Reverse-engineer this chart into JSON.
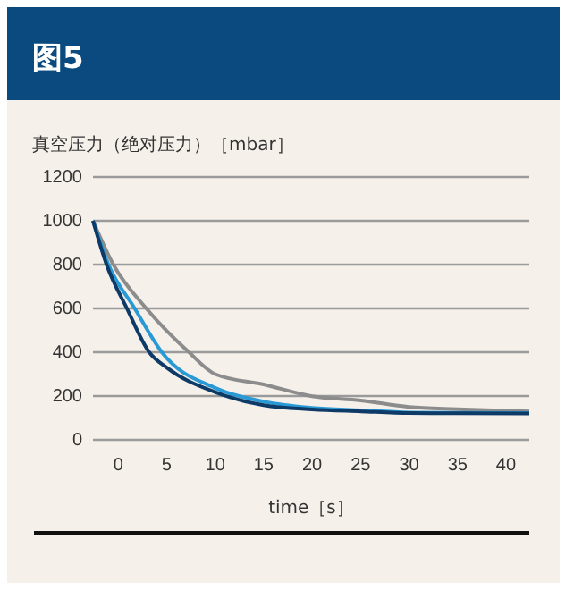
{
  "chart_data": {
    "type": "line",
    "title": "图5",
    "ylabel": "真空压力（绝对压力）［mbar］",
    "xlabel": "time［s］",
    "xlim": [
      -2.6,
      42.4
    ],
    "xticks": [
      0,
      5,
      10,
      15,
      20,
      25,
      30,
      35,
      40
    ],
    "ylim": [
      0,
      1200
    ],
    "yticks": [
      0,
      200,
      400,
      600,
      800,
      1000,
      1200
    ],
    "grid": "y",
    "series": [
      {
        "color": "#8c8c8c",
        "x": [
          -2.6,
          -0.5,
          2.9,
          7.3,
          10,
          15,
          20,
          25,
          30,
          35,
          42.4
        ],
        "values": [
          1000,
          800,
          600,
          400,
          300,
          253,
          199,
          180,
          150,
          140,
          130
        ]
      },
      {
        "color": "#2a9ad6",
        "x": [
          -2.6,
          -1,
          1.7,
          4.5,
          10,
          15,
          20,
          25,
          30,
          35,
          42.4
        ],
        "values": [
          1000,
          800,
          600,
          400,
          237,
          175,
          146,
          135,
          125,
          123,
          122
        ]
      },
      {
        "color": "#0d3a66",
        "x": [
          -2.6,
          -1.2,
          0.9,
          3.2,
          5,
          10,
          15,
          20,
          25,
          30,
          35,
          42.4
        ],
        "values": [
          1000,
          800,
          600,
          400,
          330,
          218,
          158,
          139,
          130,
          122,
          121,
          120
        ]
      }
    ]
  }
}
